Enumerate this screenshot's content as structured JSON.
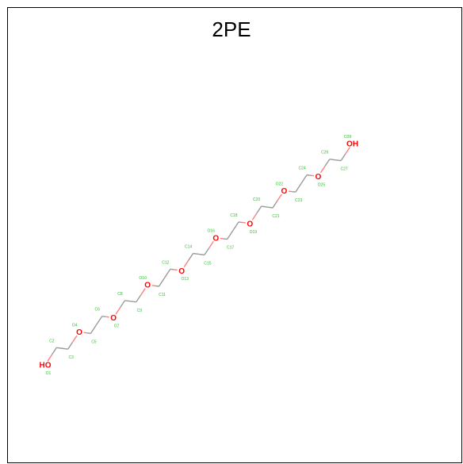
{
  "title": "2PE",
  "colors": {
    "carbon_bond": "#9a9a9a",
    "oxygen": "#ff0000",
    "oxygen_bond": "#ff8080",
    "atom_label": "#2fbf2f",
    "frame": "#000000"
  },
  "atoms": [
    {
      "symbol": "HO",
      "label": "O1"
    },
    {
      "symbol": "C",
      "label": "C2"
    },
    {
      "symbol": "C",
      "label": "C3"
    },
    {
      "symbol": "O",
      "label": "O4"
    },
    {
      "symbol": "C",
      "label": "C5"
    },
    {
      "symbol": "C",
      "label": "C6"
    },
    {
      "symbol": "O",
      "label": "O7"
    },
    {
      "symbol": "C",
      "label": "C8"
    },
    {
      "symbol": "C",
      "label": "C9"
    },
    {
      "symbol": "O",
      "label": "O10"
    },
    {
      "symbol": "C",
      "label": "C11"
    },
    {
      "symbol": "C",
      "label": "C12"
    },
    {
      "symbol": "O",
      "label": "O13"
    },
    {
      "symbol": "C",
      "label": "C14"
    },
    {
      "symbol": "C",
      "label": "C15"
    },
    {
      "symbol": "O",
      "label": "O16"
    },
    {
      "symbol": "C",
      "label": "C17"
    },
    {
      "symbol": "C",
      "label": "C18"
    },
    {
      "symbol": "O",
      "label": "O19"
    },
    {
      "symbol": "C",
      "label": "C20"
    },
    {
      "symbol": "C",
      "label": "C21"
    },
    {
      "symbol": "O",
      "label": "O22"
    },
    {
      "symbol": "C",
      "label": "C23"
    },
    {
      "symbol": "C",
      "label": "C24"
    },
    {
      "symbol": "O",
      "label": "O25"
    },
    {
      "symbol": "C",
      "label": "C26"
    },
    {
      "symbol": "C",
      "label": "C27"
    },
    {
      "symbol": "OH",
      "label": "O28"
    }
  ]
}
